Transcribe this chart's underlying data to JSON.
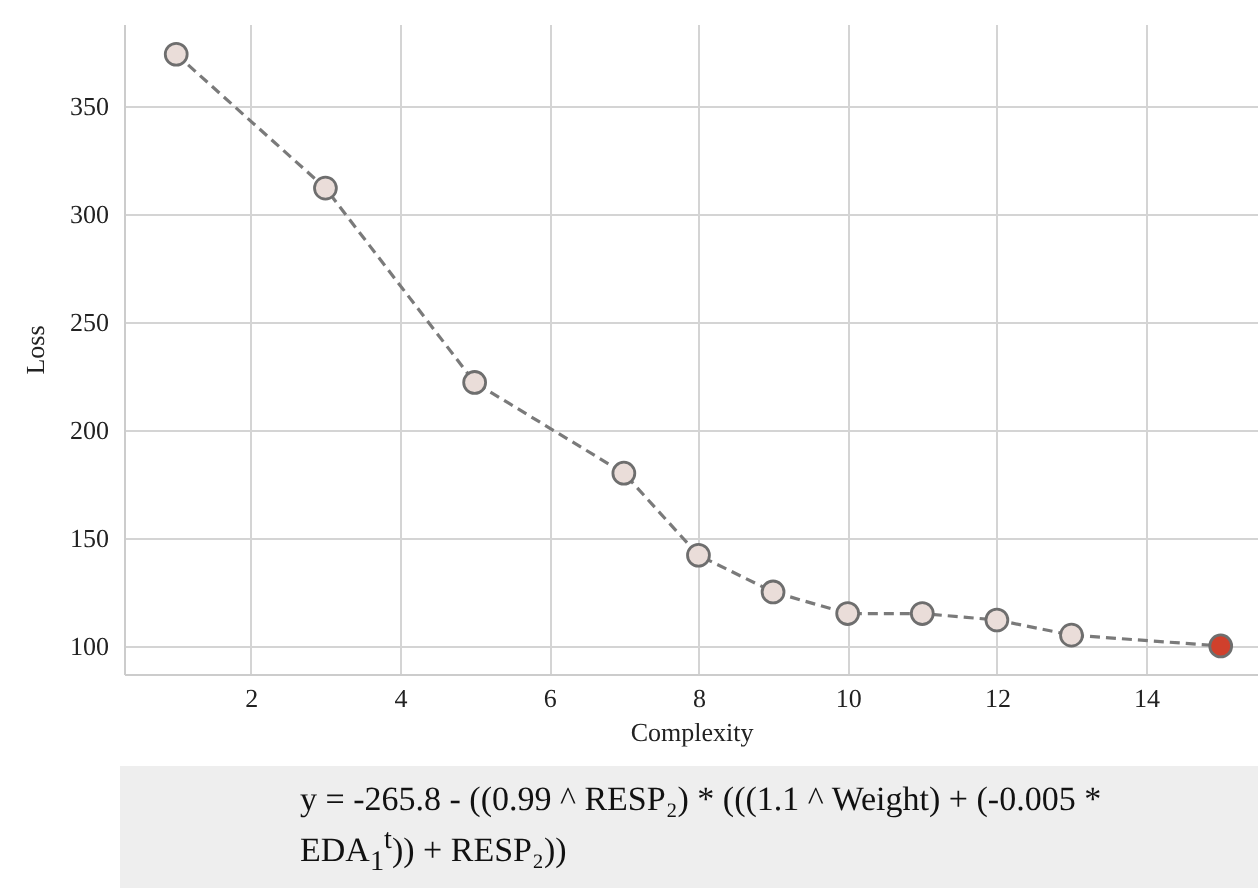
{
  "chart_data": {
    "type": "line",
    "xlabel": "Complexity",
    "ylabel": "Loss",
    "x": [
      1,
      3,
      5,
      7,
      8,
      9,
      10,
      11,
      12,
      13,
      15
    ],
    "series": [
      {
        "color": "#7a7a7a",
        "values": [
          374,
          312,
          222,
          180,
          142,
          125,
          115,
          115,
          112,
          105,
          100
        ],
        "colors": [
          "#eaddd9",
          "#eaddd9",
          "#eaddd9",
          "#eaddd9",
          "#eaddd9",
          "#eaddd9",
          "#eaddd9",
          "#eaddd9",
          "#eaddd9",
          "#eaddd9",
          "#d0402c"
        ]
      }
    ],
    "xlim": [
      0.3,
      15.5
    ],
    "xticks": [
      2,
      4,
      6,
      8,
      10,
      12,
      14
    ],
    "ylim": [
      87,
      388
    ],
    "yticks": [
      100,
      150,
      200,
      250,
      300,
      350
    ],
    "grid": true,
    "marker": "circle",
    "line_style": "dashed",
    "annotations": [
      "y = -265.8 - ((0.99 ^ RESP₂) * (((1.1 ^ Weight) + (-0.005 * EDA$_{1}$$^{t}$)) + RESP₂))"
    ]
  }
}
